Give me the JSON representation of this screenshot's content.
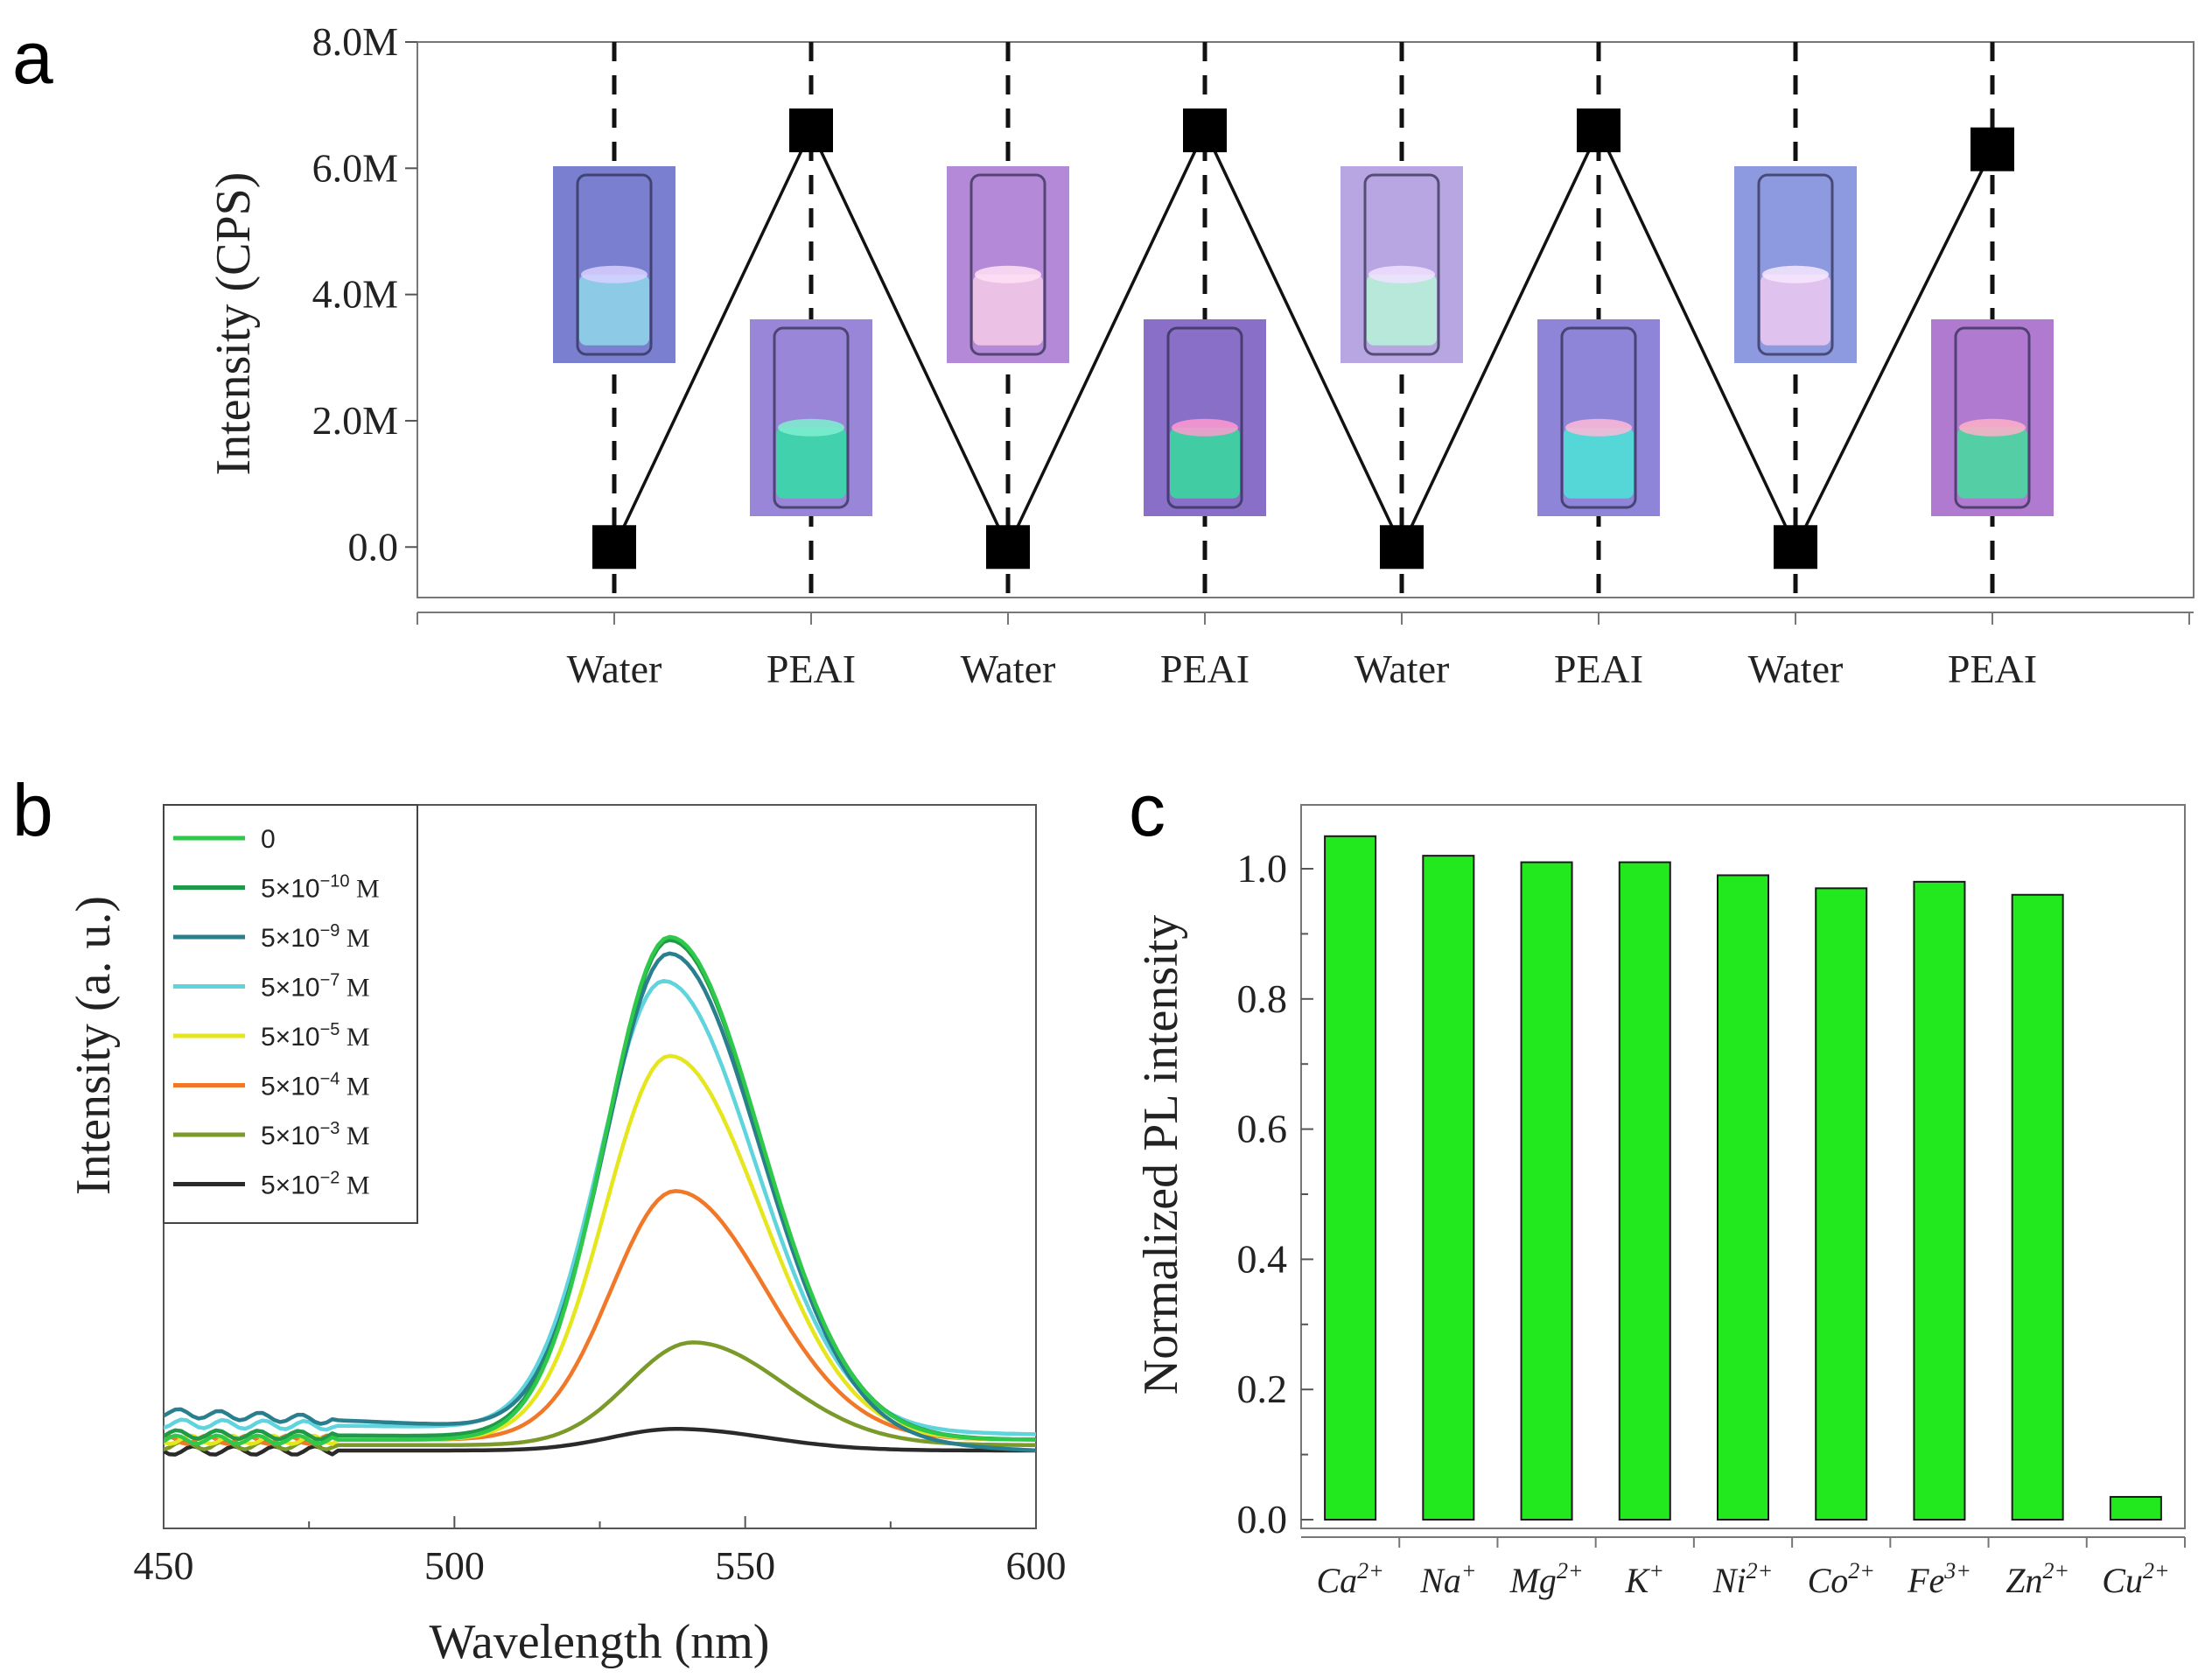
{
  "panels": {
    "a": "a",
    "b": "b",
    "c": "c"
  },
  "chart_data": [
    {
      "type": "line",
      "panel": "a",
      "ylabel": "Intensity (CPS)",
      "xlabel": "",
      "categories": [
        "Water",
        "PEAI",
        "Water",
        "PEAI",
        "Water",
        "PEAI",
        "Water",
        "PEAI"
      ],
      "values": [
        0,
        6.6,
        0,
        6.6,
        0,
        6.6,
        0,
        6.3
      ],
      "value_units": "M",
      "y_tick_labels": [
        "0.0",
        "2.0M",
        "4.0M",
        "6.0M",
        "8.0M"
      ],
      "y_tick_values": [
        0,
        2,
        4,
        6,
        8
      ],
      "ylim": [
        -0.8,
        8
      ],
      "insets": [
        {
          "top": "#7a7fd0",
          "liquid": "#8fd3e8",
          "glow": "#d8d0ff"
        },
        {
          "top": "#9a86d8",
          "liquid": "#39d9a8",
          "glow": "#7ff0d0"
        },
        {
          "top": "#b48ad8",
          "liquid": "#f2c6e8",
          "glow": "#ffe0f4"
        },
        {
          "top": "#8a6fc8",
          "liquid": "#3ad6a0",
          "glow": "#ff9ad0"
        },
        {
          "top": "#b8a6e2",
          "liquid": "#b8f0d8",
          "glow": "#f0e0ff"
        },
        {
          "top": "#8e84d8",
          "liquid": "#4fe0d8",
          "glow": "#ffb8d8"
        },
        {
          "top": "#8e9ae0",
          "liquid": "#e8c8f0",
          "glow": "#f8e8ff"
        },
        {
          "top": "#b07ad0",
          "liquid": "#4ad8a0",
          "glow": "#ffb0c8"
        }
      ]
    },
    {
      "type": "line",
      "panel": "b",
      "xlabel": "Wavelength (nm)",
      "ylabel": "Intensity (a. u.)",
      "xlim": [
        450,
        600
      ],
      "x_ticks": [
        "450",
        "500",
        "550",
        "600"
      ],
      "x_tick_values": [
        450,
        500,
        550,
        600
      ],
      "peak_center_nm": 537,
      "series": [
        {
          "name": "0",
          "conc": "0",
          "exp": "",
          "unit": "",
          "color": "#2ec84a",
          "peak": 0.93,
          "center": 537,
          "base_start": 0.02,
          "base_end": 0.02
        },
        {
          "name": "5×10⁻¹⁰ M",
          "conc": "5×10",
          "exp": "−10",
          "unit": " M",
          "color": "#1f9a48",
          "peak": 0.92,
          "center": 537,
          "base_start": 0.03,
          "base_end": 0.02
        },
        {
          "name": "5×10⁻⁹ M",
          "conc": "5×10",
          "exp": "−9",
          "unit": " M",
          "color": "#2a7f8e",
          "peak": 0.89,
          "center": 537,
          "base_start": 0.07,
          "base_end": 0.0
        },
        {
          "name": "5×10⁻⁷ M",
          "conc": "5×10",
          "exp": "−7",
          "unit": " M",
          "color": "#5fd4dc",
          "peak": 0.83,
          "center": 536,
          "base_start": 0.05,
          "base_end": 0.03
        },
        {
          "name": "5×10⁻⁵ M",
          "conc": "5×10",
          "exp": "−5",
          "unit": " M",
          "color": "#e6e61e",
          "peak": 0.71,
          "center": 537,
          "base_start": 0.02,
          "base_end": 0.02
        },
        {
          "name": "5×10⁻⁴ M",
          "conc": "5×10",
          "exp": "−4",
          "unit": " M",
          "color": "#f07828",
          "peak": 0.46,
          "center": 538,
          "base_start": 0.02,
          "base_end": 0.02
        },
        {
          "name": "5×10⁻³ M",
          "conc": "5×10",
          "exp": "−3",
          "unit": " M",
          "color": "#7a9a2a",
          "peak": 0.19,
          "center": 541,
          "base_start": 0.01,
          "base_end": 0.01
        },
        {
          "name": "5×10⁻² M",
          "conc": "5×10",
          "exp": "−2",
          "unit": " M",
          "color": "#2a2a2a",
          "peak": 0.04,
          "center": 538,
          "base_start": 0.0,
          "base_end": 0.0
        }
      ]
    },
    {
      "type": "bar",
      "panel": "c",
      "ylabel": "Normalized PL intensity",
      "xlabel": "",
      "categories": [
        {
          "base": "Ca",
          "sup": "2+"
        },
        {
          "base": "Na",
          "sup": "+"
        },
        {
          "base": "Mg",
          "sup": "2+"
        },
        {
          "base": "K",
          "sup": "+"
        },
        {
          "base": "Ni",
          "sup": "2+"
        },
        {
          "base": "Co",
          "sup": "2+"
        },
        {
          "base": "Fe",
          "sup": "3+"
        },
        {
          "base": "Zn",
          "sup": "2+"
        },
        {
          "base": "Cu",
          "sup": "2+"
        }
      ],
      "values": [
        1.05,
        1.02,
        1.01,
        1.01,
        0.99,
        0.97,
        0.98,
        0.96,
        0.035
      ],
      "ylim": [
        0,
        1.1
      ],
      "y_tick_labels": [
        "0.0",
        "0.2",
        "0.4",
        "0.6",
        "0.8",
        "1.0"
      ],
      "y_tick_values": [
        0,
        0.2,
        0.4,
        0.6,
        0.8,
        1.0
      ],
      "bar_color": "#22e81e"
    }
  ]
}
